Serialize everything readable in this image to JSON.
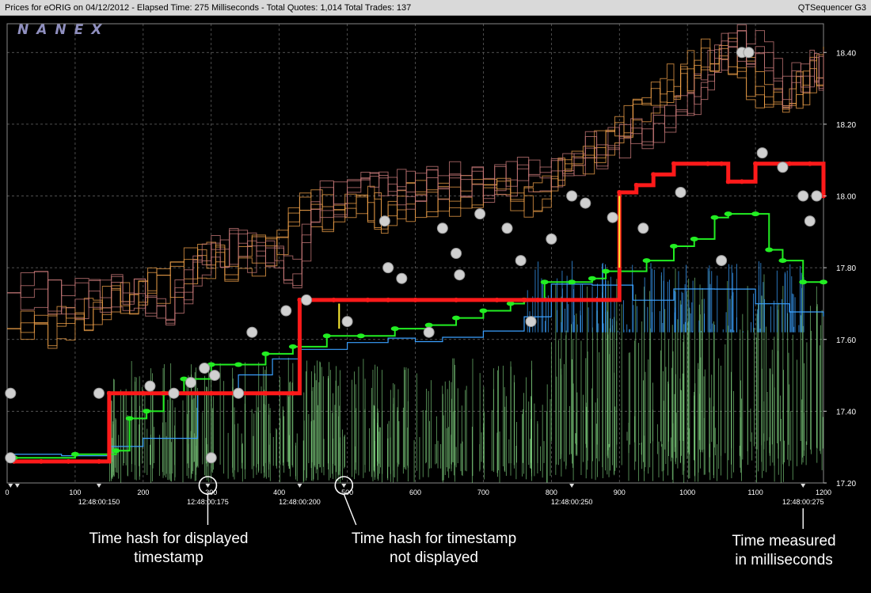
{
  "window": {
    "left_title": "Prices for  eORIG  on  04/12/2012  -  Elapsed Time: 275 Milliseconds   -  Total Quotes: 1,014  Total Trades: 137",
    "right_title": "QTSequencer G3"
  },
  "logo": "NANEX",
  "colors": {
    "background": "#000000",
    "grid": "#6a6a6a",
    "trade": "#ff1a1a",
    "bid_green": "#22ee22",
    "ask_orange": "#f0a24a",
    "exchange_pink": "#c87a7a",
    "quote_green_lines": "#7fd07f",
    "quote_blue": "#3aa0ff",
    "marker_gray": "#d0d0d0",
    "yellow": "#ffee33"
  },
  "chart_data": {
    "type": "line",
    "title": "",
    "xlabel": "",
    "ylabel": "",
    "xlim": [
      0,
      1200
    ],
    "ylim": [
      17.2,
      18.48
    ],
    "x_ticks": [
      0,
      100,
      200,
      300,
      400,
      500,
      600,
      700,
      800,
      900,
      1000,
      1100,
      1200
    ],
    "y_ticks": [
      17.2,
      17.4,
      17.6,
      17.8,
      18.0,
      18.2,
      18.4
    ],
    "y_tick_labels": [
      "17.20",
      "17.40",
      "17.60",
      "17.80",
      "18.00",
      "18.20",
      "18.40"
    ],
    "grid": true,
    "time_labels": [
      {
        "x": 135,
        "label": "12:48:00:150"
      },
      {
        "x": 295,
        "label": "12:48:00:175"
      },
      {
        "x": 430,
        "label": "12:48:00:200"
      },
      {
        "x": 830,
        "label": "12:48:00:250"
      },
      {
        "x": 1170,
        "label": "12:48:00:275"
      }
    ],
    "hash_marks_x": [
      5,
      15,
      135,
      295,
      430,
      495,
      830,
      1170
    ],
    "series": [
      {
        "role": "trades",
        "color": "#ff1a1a",
        "points": [
          [
            10,
            17.26
          ],
          [
            50,
            17.26
          ],
          [
            90,
            17.26
          ],
          [
            135,
            17.26
          ],
          [
            150,
            17.45
          ],
          [
            200,
            17.45
          ],
          [
            250,
            17.45
          ],
          [
            300,
            17.45
          ],
          [
            340,
            17.45
          ],
          [
            380,
            17.45
          ],
          [
            420,
            17.45
          ],
          [
            430,
            17.71
          ],
          [
            480,
            17.71
          ],
          [
            530,
            17.71
          ],
          [
            560,
            17.71
          ],
          [
            600,
            17.71
          ],
          [
            660,
            17.71
          ],
          [
            720,
            17.71
          ],
          [
            760,
            17.71
          ],
          [
            780,
            17.71
          ],
          [
            900,
            18.01
          ],
          [
            925,
            18.03
          ],
          [
            950,
            18.06
          ],
          [
            980,
            18.09
          ],
          [
            1030,
            18.09
          ],
          [
            1050,
            18.09
          ],
          [
            1060,
            18.04
          ],
          [
            1080,
            18.04
          ],
          [
            1100,
            18.09
          ],
          [
            1150,
            18.09
          ],
          [
            1180,
            18.09
          ],
          [
            1200,
            18.0
          ]
        ]
      },
      {
        "role": "bid",
        "color": "#22ee22",
        "points": [
          [
            10,
            17.27
          ],
          [
            100,
            17.28
          ],
          [
            160,
            17.29
          ],
          [
            180,
            17.38
          ],
          [
            205,
            17.4
          ],
          [
            230,
            17.45
          ],
          [
            260,
            17.49
          ],
          [
            300,
            17.53
          ],
          [
            340,
            17.53
          ],
          [
            380,
            17.56
          ],
          [
            420,
            17.58
          ],
          [
            470,
            17.61
          ],
          [
            520,
            17.61
          ],
          [
            570,
            17.63
          ],
          [
            620,
            17.64
          ],
          [
            660,
            17.66
          ],
          [
            700,
            17.68
          ],
          [
            740,
            17.7
          ],
          [
            760,
            17.71
          ],
          [
            790,
            17.76
          ],
          [
            830,
            17.76
          ],
          [
            860,
            17.77
          ],
          [
            880,
            17.79
          ],
          [
            940,
            17.82
          ],
          [
            980,
            17.86
          ],
          [
            1010,
            17.88
          ],
          [
            1040,
            17.94
          ],
          [
            1060,
            17.95
          ],
          [
            1100,
            17.95
          ],
          [
            1120,
            17.85
          ],
          [
            1140,
            17.82
          ],
          [
            1170,
            17.76
          ],
          [
            1200,
            17.76
          ]
        ]
      },
      {
        "role": "ask",
        "color": "#f0a24a",
        "points": [
          [
            0,
            17.63
          ],
          [
            60,
            17.63
          ],
          [
            100,
            17.66
          ],
          [
            140,
            17.7
          ],
          [
            180,
            17.72
          ],
          [
            220,
            17.75
          ],
          [
            280,
            17.82
          ],
          [
            320,
            17.82
          ],
          [
            380,
            17.84
          ],
          [
            430,
            17.98
          ],
          [
            480,
            17.93
          ],
          [
            530,
            17.98
          ],
          [
            560,
            17.94
          ],
          [
            600,
            18.0
          ],
          [
            650,
            18.0
          ],
          [
            700,
            18.0
          ],
          [
            760,
            18.0
          ],
          [
            800,
            18.02
          ],
          [
            830,
            18.1
          ],
          [
            880,
            18.14
          ],
          [
            920,
            18.25
          ],
          [
            960,
            18.3
          ],
          [
            990,
            18.33
          ],
          [
            1020,
            18.38
          ],
          [
            1060,
            18.38
          ],
          [
            1100,
            18.3
          ],
          [
            1140,
            18.28
          ],
          [
            1170,
            18.3
          ],
          [
            1200,
            18.4
          ]
        ]
      },
      {
        "role": "exchange",
        "color": "#c87a7a",
        "points": [
          [
            0,
            17.73
          ],
          [
            60,
            17.73
          ],
          [
            120,
            17.71
          ],
          [
            170,
            17.73
          ],
          [
            220,
            17.68
          ],
          [
            260,
            17.74
          ],
          [
            300,
            17.85
          ],
          [
            340,
            17.85
          ],
          [
            380,
            17.82
          ],
          [
            420,
            17.8
          ],
          [
            460,
            17.99
          ],
          [
            520,
            18.02
          ],
          [
            560,
            18.02
          ],
          [
            600,
            18.02
          ],
          [
            650,
            18.04
          ],
          [
            700,
            18.02
          ],
          [
            750,
            18.05
          ],
          [
            800,
            18.07
          ],
          [
            850,
            18.12
          ],
          [
            900,
            18.15
          ],
          [
            950,
            18.2
          ],
          [
            1000,
            18.25
          ],
          [
            1030,
            18.35
          ],
          [
            1060,
            18.42
          ],
          [
            1100,
            18.42
          ],
          [
            1140,
            18.3
          ],
          [
            1180,
            18.35
          ],
          [
            1200,
            18.35
          ]
        ]
      },
      {
        "role": "quote_blue",
        "color": "#3aa0ff",
        "points": [
          [
            0,
            17.28
          ],
          [
            80,
            17.28
          ],
          [
            150,
            17.3
          ],
          [
            200,
            17.32
          ],
          [
            280,
            17.45
          ],
          [
            340,
            17.5
          ],
          [
            390,
            17.55
          ],
          [
            430,
            17.57
          ],
          [
            500,
            17.59
          ],
          [
            560,
            17.6
          ],
          [
            600,
            17.59
          ],
          [
            640,
            17.61
          ],
          [
            700,
            17.62
          ],
          [
            760,
            17.66
          ],
          [
            800,
            17.75
          ],
          [
            860,
            17.75
          ],
          [
            920,
            17.71
          ],
          [
            980,
            17.74
          ],
          [
            1040,
            17.74
          ],
          [
            1100,
            17.7
          ],
          [
            1150,
            17.68
          ],
          [
            1200,
            17.66
          ]
        ]
      }
    ],
    "markers_gray": [
      [
        5,
        17.45
      ],
      [
        5,
        17.27
      ],
      [
        135,
        17.45
      ],
      [
        210,
        17.47
      ],
      [
        245,
        17.45
      ],
      [
        270,
        17.48
      ],
      [
        290,
        17.52
      ],
      [
        305,
        17.5
      ],
      [
        340,
        17.45
      ],
      [
        360,
        17.62
      ],
      [
        410,
        17.68
      ],
      [
        440,
        17.71
      ],
      [
        500,
        17.65
      ],
      [
        555,
        17.93
      ],
      [
        560,
        17.8
      ],
      [
        580,
        17.77
      ],
      [
        620,
        17.62
      ],
      [
        640,
        17.91
      ],
      [
        660,
        17.84
      ],
      [
        665,
        17.78
      ],
      [
        695,
        17.95
      ],
      [
        735,
        17.91
      ],
      [
        755,
        17.82
      ],
      [
        770,
        17.65
      ],
      [
        800,
        17.88
      ],
      [
        830,
        18.0
      ],
      [
        850,
        17.98
      ],
      [
        890,
        17.94
      ],
      [
        935,
        17.91
      ],
      [
        990,
        18.01
      ],
      [
        1050,
        17.82
      ],
      [
        1080,
        18.4
      ],
      [
        1090,
        18.4
      ],
      [
        1110,
        18.12
      ],
      [
        1140,
        18.08
      ],
      [
        1170,
        18.0
      ],
      [
        1180,
        17.93
      ],
      [
        1190,
        18.0
      ],
      [
        300,
        17.27
      ]
    ]
  },
  "annotations": [
    {
      "lines": [
        "Time hash for displayed",
        "timestamp"
      ]
    },
    {
      "lines": [
        "Time hash for timestamp",
        "not displayed"
      ]
    },
    {
      "lines": [
        "Time measured",
        "in milliseconds"
      ]
    }
  ]
}
